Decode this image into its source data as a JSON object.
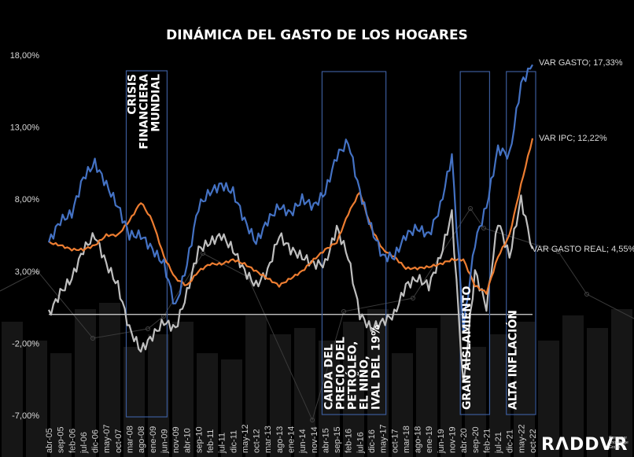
{
  "chart_data": {
    "type": "line",
    "title": "DINÁMICA DEL GASTO DE LOS HOGARES",
    "xlabel": "",
    "ylabel": "",
    "ylim": [
      -7,
      18
    ],
    "yticks": [
      "18,00%",
      "13,00%",
      "8,00%",
      "3,00%",
      "-2,00%",
      "-7,00%"
    ],
    "ytick_values": [
      18,
      13,
      8,
      3,
      -2,
      -7
    ],
    "x_ticks": [
      "abr-05",
      "sep-05",
      "feb-06",
      "jul-06",
      "dic-06",
      "may-07",
      "oct-07",
      "mar-08",
      "ago-08",
      "ene-09",
      "jun-09",
      "nov-09",
      "abr-10",
      "sep-10",
      "feb-11",
      "jul-11",
      "dic-11",
      "may-12",
      "oct-12",
      "mar-13",
      "ago-13",
      "ene-14",
      "jun-14",
      "nov-14",
      "abr-15",
      "sep-15",
      "feb-16",
      "jul-16",
      "dic-16",
      "may-17",
      "oct-17",
      "mar-18",
      "ago-18",
      "ene-19",
      "jun-19",
      "nov-19",
      "abr-20",
      "sep-20",
      "feb-21",
      "jul-21",
      "dic-21",
      "may-22",
      "oct-22"
    ],
    "series": [
      {
        "name": "VAR GASTO",
        "color": "#4472c4",
        "end_label": "VAR GASTO; 17,33%",
        "values": [
          5.0,
          6.5,
          7.0,
          9.5,
          10.5,
          9.0,
          7.5,
          5.5,
          5.5,
          4.5,
          3.5,
          0.5,
          3.5,
          7.5,
          8.5,
          9.0,
          8.5,
          6.5,
          5.0,
          6.5,
          7.5,
          7.0,
          8.0,
          7.5,
          8.5,
          11.0,
          12.0,
          8.5,
          6.0,
          4.0,
          4.0,
          5.5,
          6.0,
          5.5,
          7.5,
          11.0,
          -1.0,
          5.0,
          7.5,
          11.5,
          11.0,
          16.0,
          17.33
        ]
      },
      {
        "name": "VAR IPC",
        "color": "#ed7d31",
        "end_label": "VAR IPC; 12,22%",
        "values": [
          5.0,
          4.8,
          4.5,
          4.5,
          4.8,
          5.5,
          5.5,
          6.5,
          7.8,
          6.5,
          4.0,
          2.5,
          2.0,
          3.0,
          3.5,
          3.5,
          3.8,
          3.5,
          3.0,
          2.5,
          2.0,
          2.5,
          3.0,
          3.8,
          4.5,
          5.0,
          7.0,
          8.5,
          6.0,
          4.5,
          4.0,
          3.2,
          3.2,
          3.3,
          3.5,
          3.8,
          3.8,
          2.0,
          1.5,
          4.0,
          5.5,
          9.0,
          12.22
        ]
      },
      {
        "name": "VAR GASTO REAL",
        "color": "#bfbfbf",
        "end_label": "VAR GASTO REAL; 4,55%",
        "values": [
          0.0,
          1.5,
          2.5,
          4.5,
          5.5,
          3.5,
          2.0,
          -1.0,
          -2.5,
          -1.5,
          -0.5,
          -1.0,
          1.5,
          4.5,
          5.0,
          5.5,
          4.5,
          3.0,
          2.0,
          3.0,
          5.5,
          4.5,
          4.0,
          3.5,
          3.5,
          6.0,
          4.0,
          0.0,
          -1.0,
          -0.5,
          0.0,
          2.0,
          2.5,
          2.0,
          4.0,
          7.0,
          -5.0,
          3.0,
          0.5,
          6.5,
          4.0,
          8.0,
          4.55
        ]
      }
    ],
    "reference_line": {
      "name": "zero",
      "value": 0
    },
    "background_bars": "decorative gray columns",
    "annotations": [
      {
        "text_lines": [
          "CRISIS",
          "FINANCIERA",
          "MUNDIAL"
        ],
        "from": "mar-08",
        "to": "jun-09"
      },
      {
        "text_lines": [
          "CAIDA DEL",
          "PRECIO DEL",
          "PETRÓLEO,",
          "EL NIÑO,",
          "IVAL DEL 19%"
        ],
        "from": "abr-15",
        "to": "may-17"
      },
      {
        "text_lines": [
          "GRAN AISLAMIENTO"
        ],
        "from": "abr-20",
        "to": "feb-21"
      },
      {
        "text_lines": [
          "ALTA INFLACIÓN"
        ],
        "from": "dic-21",
        "to": "oct-22"
      }
    ],
    "legend": "end-of-line labels (right)"
  },
  "branding": {
    "logo_text": "RADDAR",
    "logo_display": "RΛDDVR",
    "sub_lines": [
      "Consumer",
      "Knowledge",
      "Group"
    ]
  }
}
